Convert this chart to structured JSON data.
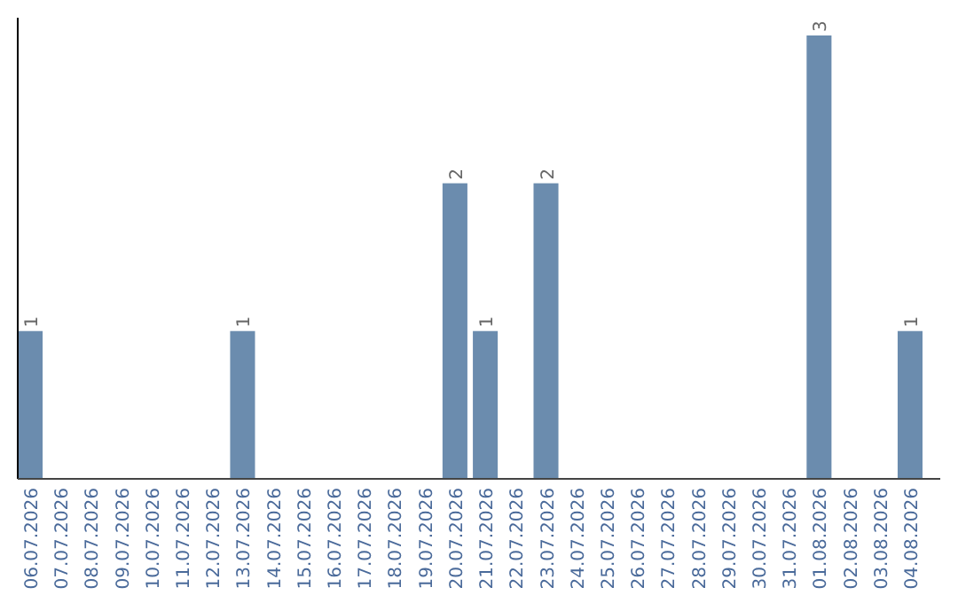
{
  "chart_data": {
    "type": "bar",
    "categories": [
      "06.07.2026",
      "07.07.2026",
      "08.07.2026",
      "09.07.2026",
      "10.07.2026",
      "11.07.2026",
      "12.07.2026",
      "13.07.2026",
      "14.07.2026",
      "15.07.2026",
      "16.07.2026",
      "17.07.2026",
      "18.07.2026",
      "19.07.2026",
      "20.07.2026",
      "21.07.2026",
      "22.07.2026",
      "23.07.2026",
      "24.07.2026",
      "25.07.2026",
      "26.07.2026",
      "27.07.2026",
      "28.07.2026",
      "29.07.2026",
      "30.07.2026",
      "31.07.2026",
      "01.08.2026",
      "02.08.2026",
      "03.08.2026",
      "04.08.2026"
    ],
    "values": [
      1,
      0,
      0,
      0,
      0,
      0,
      0,
      1,
      0,
      0,
      0,
      0,
      0,
      0,
      2,
      1,
      0,
      2,
      0,
      0,
      0,
      0,
      0,
      0,
      0,
      0,
      3,
      0,
      0,
      1
    ],
    "color": "#6b8cae",
    "value_labels": [
      "1",
      null,
      null,
      null,
      null,
      null,
      null,
      "1",
      null,
      null,
      null,
      null,
      null,
      null,
      "2",
      "1",
      null,
      "2",
      null,
      null,
      null,
      null,
      null,
      null,
      null,
      null,
      "3",
      null,
      null,
      "1"
    ]
  }
}
